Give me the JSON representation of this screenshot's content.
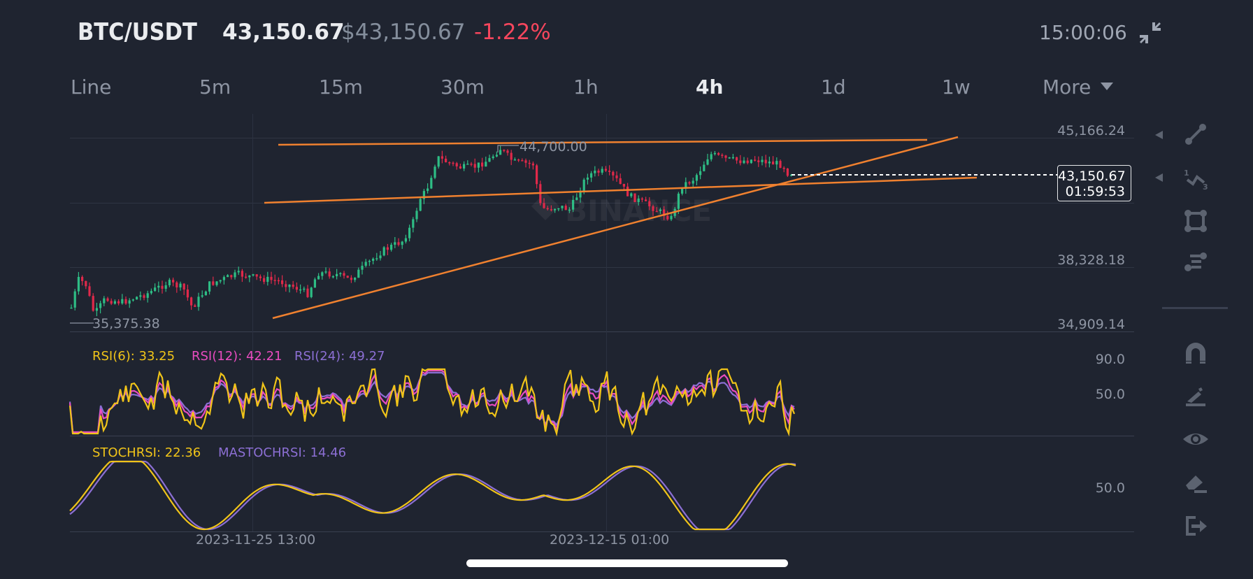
{
  "header": {
    "pair": "BTC/USDT",
    "last_price": "43,150.67",
    "usd_price": "$43,150.67",
    "change_pct": "-1.22%",
    "clock": "15:00:06",
    "compress_icon": "compress-icon"
  },
  "tabs": [
    {
      "label": "Line",
      "active": false
    },
    {
      "label": "5m",
      "active": false
    },
    {
      "label": "15m",
      "active": false
    },
    {
      "label": "30m",
      "active": false
    },
    {
      "label": "1h",
      "active": false
    },
    {
      "label": "4h",
      "active": true
    },
    {
      "label": "1d",
      "active": false
    },
    {
      "label": "1w",
      "active": false
    },
    {
      "label": "More",
      "active": false,
      "dropdown": true
    }
  ],
  "main_chart": {
    "axis_labels": [
      "45,166.24",
      "38,328.18",
      "34,909.14"
    ],
    "current_price": "43,150.67",
    "countdown": "01:59:53",
    "high_marker": "44,700.00",
    "low_marker": "35,375.38",
    "watermark": "BINANCE",
    "colors": {
      "up": "#2ebd85",
      "down": "#e0294a",
      "trendline": "#f0812f"
    }
  },
  "rsi": {
    "labels": {
      "rsi6": "RSI(6): 33.25",
      "rsi12": "RSI(12): 42.21",
      "rsi24": "RSI(24): 49.27"
    },
    "axis": [
      "90.0",
      "50.0"
    ],
    "colors": {
      "rsi6": "#f0c419",
      "rsi12": "#e94cc0",
      "rsi24": "#8c6fd4"
    }
  },
  "stochrsi": {
    "labels": {
      "stoch": "STOCHRSI: 22.36",
      "ma": "MASTOCHRSI: 14.46"
    },
    "axis": [
      "50.0"
    ],
    "colors": {
      "stoch": "#f0c419",
      "ma": "#8c6fd4"
    }
  },
  "x_axis": {
    "labels": [
      "2023-11-25 13:00",
      "2023-12-15 01:00"
    ]
  },
  "toolbar": {
    "icons": [
      "trend-line-icon",
      "fib-wave-icon",
      "rectangle-icon",
      "parallel-channel-icon",
      "magnet-icon",
      "pen-icon",
      "eye-icon",
      "eraser-icon",
      "exit-icon"
    ]
  }
}
